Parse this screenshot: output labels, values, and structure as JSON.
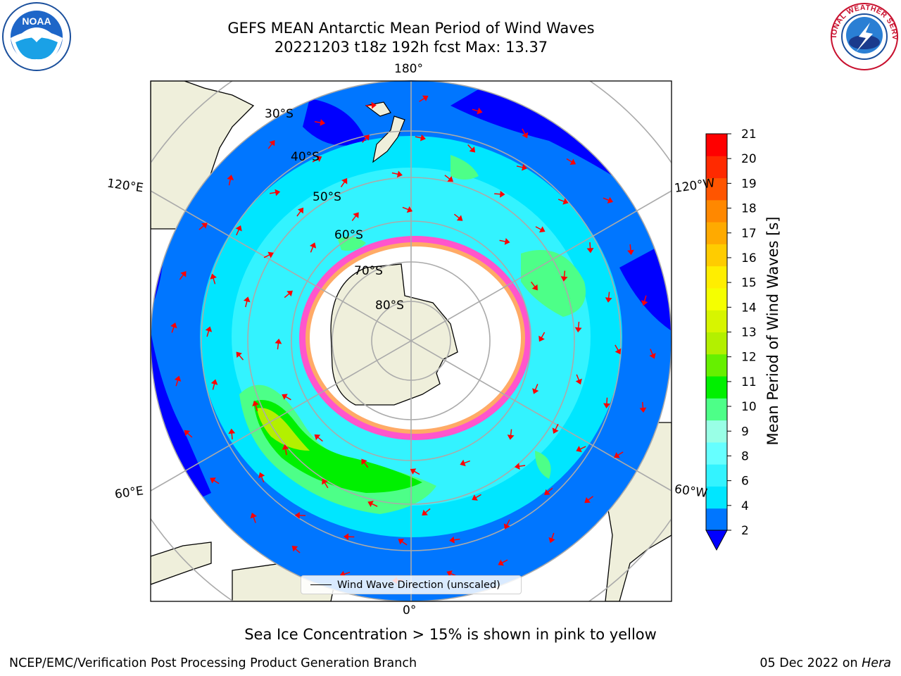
{
  "title": {
    "line1": "GEFS MEAN Antarctic Mean Period of Wind Waves",
    "line2": "20221203 t18z 192h fcst   Max: 13.37"
  },
  "logos": {
    "left": "NOAA",
    "right": "NATIONAL WEATHER SERVICE"
  },
  "map": {
    "projection": "south-polar-stereographic",
    "lon_labels": {
      "top": "180°",
      "bottom": "0°",
      "upper_left": "120°E",
      "upper_right": "120°W",
      "lower_left": "60°E",
      "lower_right": "60°W"
    },
    "lat_labels": [
      "30°S",
      "40°S",
      "50°S",
      "60°S",
      "70°S",
      "80°S"
    ],
    "legend_label": "Wind Wave Direction (unscaled)"
  },
  "colorbar": {
    "label": "Mean Period of Wind Waves [s]",
    "ticks": [
      "2",
      "4",
      "6",
      "8",
      "9",
      "10",
      "11",
      "12",
      "13",
      "14",
      "15",
      "16",
      "17",
      "18",
      "19",
      "20",
      "21"
    ],
    "colors": [
      "#0076ff",
      "#00e6ff",
      "#33f3ff",
      "#66ffff",
      "#99ffe6",
      "#4dff88",
      "#00f000",
      "#66f000",
      "#b3f000",
      "#d7f500",
      "#f5ff00",
      "#ffee00",
      "#ffcc00",
      "#ffaa00",
      "#ff8800",
      "#ff5500",
      "#ff2a00",
      "#ff0000"
    ],
    "under_color": "#0000ff",
    "extend": "min"
  },
  "note": "Sea Ice Concentration > 15% is shown in pink to yellow",
  "footer": {
    "left": "NCEP/EMC/Verification Post Processing Product Generation Branch",
    "right_date": "05 Dec 2022 on",
    "right_host": "Hera"
  }
}
